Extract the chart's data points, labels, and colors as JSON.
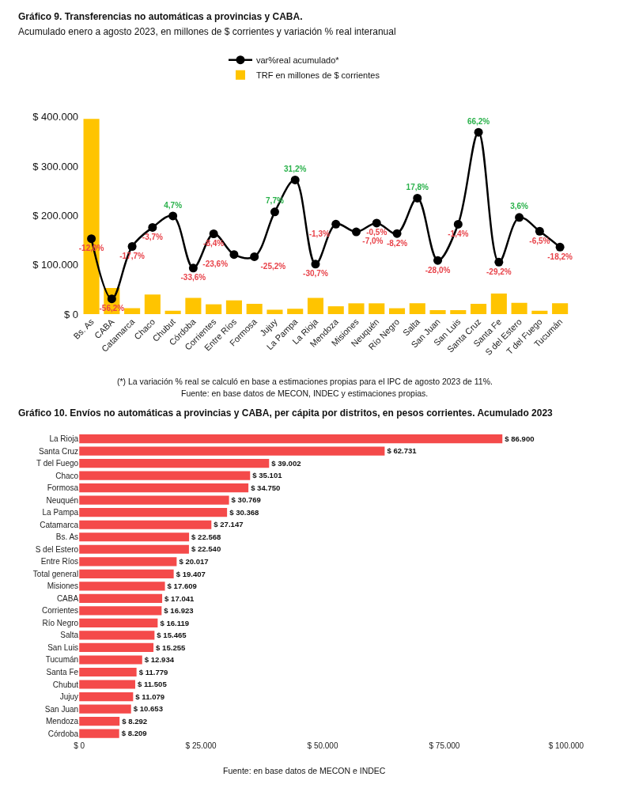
{
  "chart_data": [
    {
      "type": "bar",
      "title": "Gráfico 9. Transferencias no automáticas a provincias y CABA.",
      "subtitle": "Acumulado enero a agosto 2023, en millones de $ corrientes y variación % real interanual",
      "categories": [
        "Bs. As",
        "CABA",
        "Catamarca",
        "Chaco",
        "Chubut",
        "Córdoba",
        "Corrientes",
        "Entre Ríos",
        "Formosa",
        "Jujuy",
        "La Pampa",
        "La Rioja",
        "Mendoza",
        "Misiones",
        "Neuquén",
        "Río Negro",
        "Salta",
        "San Juan",
        "San Luis",
        "Santa Cruz",
        "Santa Fe",
        "S del Estero",
        "T del Fuego",
        "Tucumán"
      ],
      "series": [
        {
          "name": "TRF en millones de $ corrientes",
          "color": "#ffc400",
          "values": [
            396000,
            53000,
            12000,
            40000,
            7000,
            33000,
            20000,
            28000,
            21000,
            9000,
            11000,
            33000,
            16000,
            22000,
            22000,
            12000,
            22000,
            8000,
            8000,
            21000,
            42000,
            23000,
            7000,
            22000
          ]
        },
        {
          "name": "var%real acumulado*",
          "type": "line",
          "axis": "y2",
          "color": "#000000",
          "marker": "circle",
          "line_style": "solid",
          "values": [
            -12.0,
            -56.2,
            -17.7,
            -3.7,
            4.7,
            -33.6,
            -8.4,
            -23.6,
            -25.2,
            7.7,
            31.2,
            -30.7,
            -1.3,
            -7.0,
            -0.5,
            -8.2,
            17.8,
            -28.0,
            -1.4,
            66.2,
            -29.2,
            3.6,
            -6.5,
            -18.2
          ],
          "value_labels": [
            "-12,0%",
            "-56,2%",
            "-17,7%",
            "-3,7%",
            "4,7%",
            "-33,6%",
            "-8,4%",
            "-23,6%",
            "-25,2%",
            "7,7%",
            "31,2%",
            "-30,7%",
            "-1,3%",
            "-7,0%",
            "-0,5%",
            "-8,2%",
            "17,8%",
            "-28,0%",
            "-1,4%",
            "66,2%",
            "-29,2%",
            "3,6%",
            "-6,5%",
            "-18,2%"
          ]
        }
      ],
      "ylim": [
        0,
        400000
      ],
      "yticks": [
        {
          "value": 0,
          "label": "$ 0"
        },
        {
          "value": 100000,
          "label": "$ 100.000"
        },
        {
          "value": 200000,
          "label": "$ 200.000"
        },
        {
          "value": 300000,
          "label": "$ 300.000"
        },
        {
          "value": 400000,
          "label": "$ 400.000"
        }
      ],
      "legend": "top",
      "annotations": [
        "(*) La variación % real se calculó en base a estimaciones propias para el IPC de agosto 2023 de 11%.",
        "Fuente: en base datos de MECON, INDEC y estimaciones propias."
      ]
    },
    {
      "type": "bar",
      "orientation": "horizontal",
      "title": "Gráfico 10. Envíos no automáticas a provincias y CABA, per cápita por distritos, en pesos corrientes. Acumulado 2023",
      "categories": [
        "La Rioja",
        "Santa Cruz",
        "T del Fuego",
        "Chaco",
        "Formosa",
        "Neuquén",
        "La Pampa",
        "Catamarca",
        "Bs. As",
        "S del Estero",
        "Entre Ríos",
        "Total general",
        "Misiones",
        "CABA",
        "Corrientes",
        "Río Negro",
        "Salta",
        "San Luis",
        "Tucumán",
        "Santa Fe",
        "Chubut",
        "Jujuy",
        "San Juan",
        "Mendoza",
        "Córdoba"
      ],
      "color": "#f44a4a",
      "values": [
        86900,
        62731,
        39002,
        35101,
        34750,
        30769,
        30368,
        27147,
        22568,
        22540,
        20017,
        19407,
        17609,
        17041,
        16923,
        16119,
        15465,
        15255,
        12934,
        11779,
        11505,
        11079,
        10653,
        8292,
        8209
      ],
      "value_labels": [
        "$ 86.900",
        "$ 62.731",
        "$ 39.002",
        "$ 35.101",
        "$ 34.750",
        "$ 30.769",
        "$ 30.368",
        "$ 27.147",
        "$ 22.568",
        "$ 22.540",
        "$ 20.017",
        "$ 19.407",
        "$ 17.609",
        "$ 17.041",
        "$ 16.923",
        "$ 16.119",
        "$ 15.465",
        "$ 15.255",
        "$ 12.934",
        "$ 11.779",
        "$ 11.505",
        "$ 11.079",
        "$ 10.653",
        "$ 8.292",
        "$ 8.209"
      ],
      "xlim": [
        0,
        100000
      ],
      "xticks": [
        {
          "value": 0,
          "label": "$ 0"
        },
        {
          "value": 25000,
          "label": "$ 25.000"
        },
        {
          "value": 50000,
          "label": "$ 50.000"
        },
        {
          "value": 75000,
          "label": "$ 75.000"
        },
        {
          "value": 100000,
          "label": "$ 100.000"
        }
      ],
      "legend": false,
      "annotations": [
        "Fuente: en base datos de MECON e INDEC"
      ]
    }
  ]
}
